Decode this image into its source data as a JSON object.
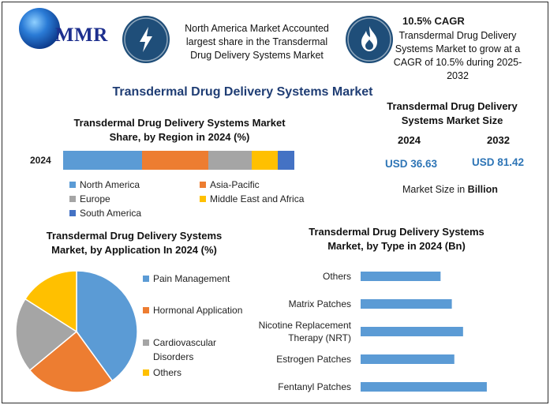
{
  "brand": {
    "logo_text": "MMR"
  },
  "header": {
    "card1": {
      "text_line1": "North America Market Accounted",
      "text_line2": "largest share in the Transdermal",
      "text_line3": "Drug Delivery Systems Market",
      "icon": "lightning-icon"
    },
    "card2": {
      "headline": "10.5% CAGR",
      "text_line1": "Transdermal Drug Delivery",
      "text_line2": "Systems Market to grow at a",
      "text_line3": "CAGR of 10.5% during 2025-",
      "text_line4": "2032",
      "icon": "flame-icon"
    }
  },
  "main_title": "Transdermal Drug Delivery Systems Market",
  "market_size": {
    "title_line1": "Transdermal Drug Delivery",
    "title_line2": "Systems Market Size",
    "year1": "2024",
    "year2": "2032",
    "value1": "USD 36.63",
    "value2": "USD 81.42",
    "unit_prefix": "Market Size in ",
    "unit_bold": "Billion"
  },
  "chart_data": [
    {
      "type": "bar",
      "orientation": "horizontal-stacked",
      "title_line1": "Transdermal Drug Delivery Systems Market",
      "title_line2": "Share, by Region in 2024 (%)",
      "categories": [
        "2024"
      ],
      "series": [
        {
          "name": "North America",
          "values": [
            33
          ],
          "color": "#5b9bd5"
        },
        {
          "name": "Asia-Pacific",
          "values": [
            28
          ],
          "color": "#ed7d31"
        },
        {
          "name": "Europe",
          "values": [
            18
          ],
          "color": "#a5a5a5"
        },
        {
          "name": "Middle East and Africa",
          "values": [
            11
          ],
          "color": "#ffc000"
        },
        {
          "name": "South America",
          "values": [
            7
          ],
          "color": "#4472c4"
        }
      ],
      "legend_placement": "bottom"
    },
    {
      "type": "pie",
      "title_line1": "Transdermal Drug Delivery Systems",
      "title_line2": "Market, by Application In 2024 (%)",
      "slices": [
        {
          "name": "Pain Management",
          "value": 40,
          "color": "#5b9bd5"
        },
        {
          "name": "Hormonal Application",
          "value": 24,
          "color": "#ed7d31"
        },
        {
          "name": "Cardiovascular Disorders",
          "name_line1": "Cardiovascular",
          "name_line2": "Disorders",
          "value": 20,
          "color": "#a5a5a5"
        },
        {
          "name": "Others",
          "value": 16,
          "color": "#ffc000"
        }
      ],
      "legend_placement": "right"
    },
    {
      "type": "bar",
      "orientation": "horizontal",
      "title_line1": "Transdermal Drug Delivery Systems",
      "title_line2": "Market, by Type in 2024 (Bn)",
      "categories": [
        "Others",
        "Matrix Patches",
        "Nicotine Replacement Therapy (NRT)",
        "Estrogen Patches",
        "Fentanyl Patches"
      ],
      "category_lines": [
        [
          "Others"
        ],
        [
          "Matrix Patches"
        ],
        [
          "Nicotine Replacement",
          "Therapy (NRT)"
        ],
        [
          "Estrogen Patches"
        ],
        [
          "Fentanyl Patches"
        ]
      ],
      "values": [
        6.4,
        7.3,
        8.2,
        7.5,
        10.1
      ],
      "xlim": [
        0,
        12
      ],
      "color": "#5b9bd5",
      "grid": false
    }
  ]
}
